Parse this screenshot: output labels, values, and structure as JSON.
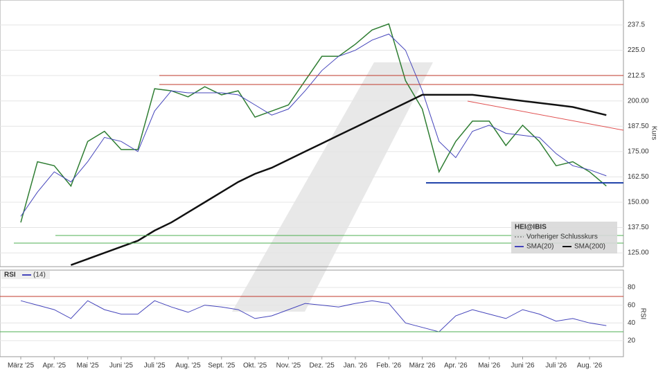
{
  "chart_data": [
    {
      "type": "line",
      "title": "HEI@IBIS",
      "y_label": "Kurs",
      "grid": true,
      "ylim": [
        118.2,
        249.8
      ],
      "yticks": [
        {
          "value": 125,
          "label": "125.00"
        },
        {
          "value": 137.5,
          "label": "137.50"
        },
        {
          "value": 150,
          "label": "150.00"
        },
        {
          "value": 162.5,
          "label": "162.50"
        },
        {
          "value": 175,
          "label": "175.00"
        },
        {
          "value": 187.5,
          "label": "187.50"
        },
        {
          "value": 200,
          "label": "200.00"
        },
        {
          "value": 212.5,
          "label": "212.5"
        },
        {
          "value": 225,
          "label": "225.0"
        },
        {
          "value": 237.5,
          "label": "237.5"
        }
      ],
      "legend_extra": "Vorheriger Schlusskurs",
      "series": [
        {
          "name": "HEI@IBIS",
          "color": "#2e7d32",
          "width": 1.5,
          "values": [
            140,
            170,
            168,
            158,
            180,
            185,
            176,
            176,
            206,
            205,
            202,
            207,
            203,
            205,
            192,
            195,
            198,
            210,
            222,
            222,
            228,
            235,
            238,
            210,
            196,
            165,
            180,
            190,
            190,
            178,
            188,
            180,
            168,
            170,
            165,
            158
          ]
        },
        {
          "name": "SMA(20)",
          "color": "#4444bb",
          "width": 1,
          "values": [
            143,
            155,
            165,
            160,
            170,
            182,
            180,
            175,
            195,
            205,
            204,
            204,
            204,
            203,
            198,
            193,
            196,
            205,
            215,
            222,
            225,
            230,
            233,
            225,
            205,
            180,
            172,
            185,
            188,
            184,
            183,
            182,
            174,
            168,
            166,
            163
          ]
        },
        {
          "name": "SMA(200)",
          "color": "#111111",
          "width": 2.5,
          "values": [
            null,
            null,
            null,
            119,
            122,
            125,
            128,
            131,
            136,
            140,
            145,
            150,
            155,
            160,
            164,
            167,
            171,
            175,
            179,
            183,
            187,
            191,
            195,
            199,
            203,
            203,
            203,
            203,
            202,
            201,
            200,
            199,
            198,
            197,
            195,
            193
          ]
        }
      ]
    },
    {
      "type": "line",
      "title": "RSI",
      "y_label": "RSI",
      "period": "(14)",
      "grid": true,
      "ylim": [
        2,
        99.5
      ],
      "yticks": [
        20,
        40,
        60,
        80
      ],
      "categories": [
        "März '25",
        null,
        "Apr. '25",
        null,
        "Mai '25",
        null,
        "Juni '25",
        null,
        "Juli '25",
        null,
        "Aug. '25",
        null,
        "Sept. '25",
        null,
        "Okt. '25",
        null,
        "Nov. '25",
        null,
        "Dez. '25",
        null,
        "Jan. '26",
        null,
        "Feb. '26",
        null,
        "März '26",
        null,
        "Apr. '26",
        null,
        "Mai '26",
        null,
        "Juni '26",
        null,
        "Juli '26",
        null,
        "Aug. '26",
        null
      ],
      "series": [
        {
          "name": "(14)",
          "color": "#4444bb",
          "width": 1,
          "values": [
            65,
            60,
            55,
            45,
            65,
            55,
            50,
            50,
            65,
            58,
            52,
            60,
            58,
            55,
            45,
            48,
            55,
            62,
            60,
            58,
            62,
            65,
            62,
            40,
            35,
            30,
            48,
            55,
            50,
            45,
            55,
            50,
            42,
            45,
            40,
            37
          ]
        }
      ]
    }
  ]
}
